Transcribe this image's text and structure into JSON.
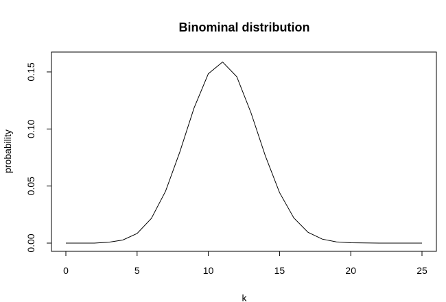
{
  "chart_data": {
    "type": "line",
    "title": "Binominal distribution",
    "xlabel": "k",
    "ylabel": "probability",
    "xlim": [
      0,
      25
    ],
    "ylim": [
      0,
      0.16
    ],
    "x_ticks": [
      0,
      5,
      10,
      15,
      20,
      25
    ],
    "y_ticks": [
      0.0,
      0.05,
      0.1,
      0.15
    ],
    "x_tick_labels": [
      "0",
      "5",
      "10",
      "15",
      "20",
      "25"
    ],
    "y_tick_labels": [
      "0.00",
      "0.05",
      "0.10",
      "0.15"
    ],
    "grid": false,
    "line_color": "#000000",
    "series": [
      {
        "x": [
          0,
          1,
          2,
          3,
          4,
          5,
          6,
          7,
          8,
          9,
          10,
          11,
          12,
          13,
          14,
          15,
          16,
          17,
          18,
          19,
          20,
          21,
          22,
          23,
          24,
          25
        ],
        "y": [
          0.0,
          0.0,
          0.0,
          0.0008,
          0.0027,
          0.0084,
          0.0216,
          0.0455,
          0.0799,
          0.1184,
          0.1484,
          0.1587,
          0.1458,
          0.114,
          0.0766,
          0.0443,
          0.0221,
          0.0095,
          0.0035,
          0.0011,
          0.0003,
          0.0001,
          0.0,
          0.0,
          0.0,
          0.0
        ]
      }
    ]
  }
}
